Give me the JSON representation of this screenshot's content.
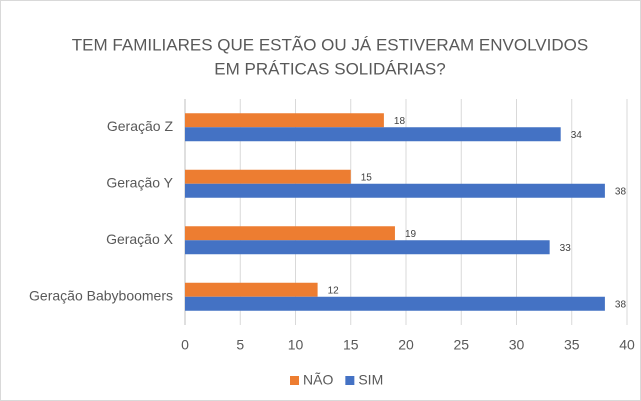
{
  "chart_data": {
    "type": "hbar",
    "title": [
      "TEM FAMILIARES QUE ESTÃO OU JÁ ESTIVERAM ENVOLVIDOS",
      "EM PRÁTICAS SOLIDÁRIAS?"
    ],
    "categories": [
      "Geração Z",
      "Geração Y",
      "Geração X",
      "Geração Babyboomers"
    ],
    "series": [
      {
        "name": "NÃO",
        "color": "#ed7d31",
        "values": [
          18,
          15,
          19,
          12
        ]
      },
      {
        "name": "SIM",
        "color": "#4472c4",
        "values": [
          34,
          38,
          33,
          38
        ]
      }
    ],
    "xlim": [
      0,
      40
    ],
    "xticks": [
      0,
      5,
      10,
      15,
      20,
      25,
      30,
      35,
      40
    ],
    "grid": true,
    "legend": "bottom"
  }
}
